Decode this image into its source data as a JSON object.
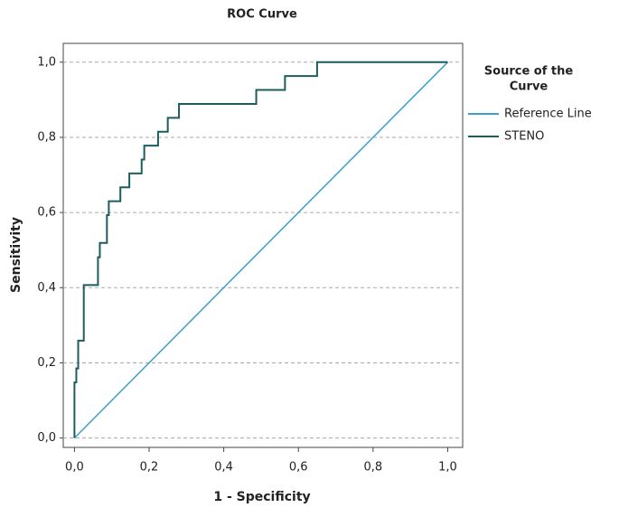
{
  "chart_data": {
    "type": "line",
    "title": "ROC Curve",
    "x_label": "1 - Specificity",
    "y_label": "Sensitivity",
    "legend_title": [
      "Source of the",
      "Curve"
    ],
    "legend_position": "right",
    "grid": true,
    "xlim": [
      -0.03,
      1.04
    ],
    "ylim": [
      -0.025,
      1.05
    ],
    "xticks": [
      {
        "value": 0,
        "label": "0,0"
      },
      {
        "value": 0.2,
        "label": "0,2"
      },
      {
        "value": 0.4,
        "label": "0,4"
      },
      {
        "value": 0.6,
        "label": "0,6"
      },
      {
        "value": 0.8,
        "label": "0,8"
      },
      {
        "value": 1,
        "label": "1,0"
      }
    ],
    "yticks": [
      {
        "value": 0,
        "label": "0,0"
      },
      {
        "value": 0.2,
        "label": "0,2"
      },
      {
        "value": 0.4,
        "label": "0,4"
      },
      {
        "value": 0.6,
        "label": "0,6"
      },
      {
        "value": 0.8,
        "label": "0,8"
      },
      {
        "value": 1,
        "label": "1,0"
      }
    ],
    "series": [
      {
        "name": "Reference Line",
        "color": "#3a9fd0",
        "x": [
          0,
          1
        ],
        "values": [
          0,
          1
        ]
      },
      {
        "name": "STENO",
        "color": "#1e5c5e",
        "x": [
          0,
          0,
          0.005,
          0.005,
          0.01,
          0.01,
          0.025,
          0.025,
          0.063,
          0.063,
          0.068,
          0.068,
          0.087,
          0.087,
          0.092,
          0.092,
          0.123,
          0.123,
          0.147,
          0.147,
          0.18,
          0.18,
          0.187,
          0.187,
          0.224,
          0.224,
          0.25,
          0.25,
          0.28,
          0.28,
          0.487,
          0.487,
          0.564,
          0.564,
          0.65,
          0.65,
          1
        ],
        "values": [
          0,
          0.148,
          0.148,
          0.185,
          0.185,
          0.259,
          0.259,
          0.407,
          0.407,
          0.481,
          0.481,
          0.519,
          0.519,
          0.593,
          0.593,
          0.63,
          0.63,
          0.667,
          0.667,
          0.704,
          0.704,
          0.741,
          0.741,
          0.778,
          0.778,
          0.815,
          0.815,
          0.852,
          0.852,
          0.889,
          0.889,
          0.926,
          0.926,
          0.963,
          0.963,
          1,
          1
        ]
      }
    ]
  }
}
